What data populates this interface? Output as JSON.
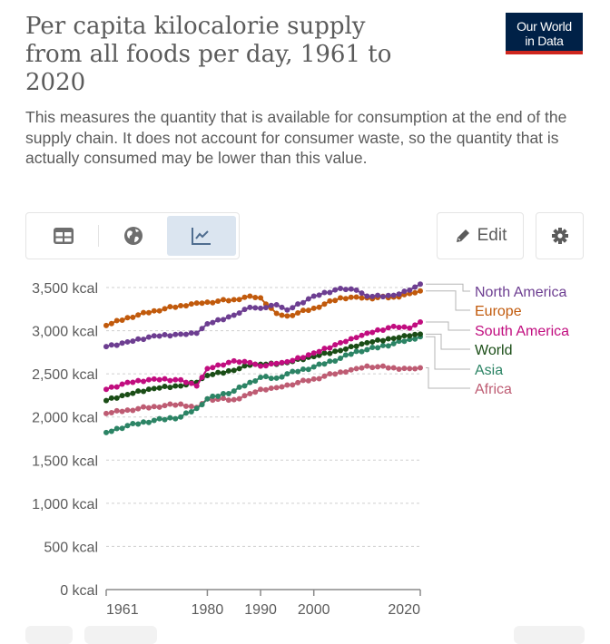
{
  "header": {
    "title": "Per capita kilocalorie supply from all foods per day, 1961 to 2020",
    "subtitle": "This measures the quantity that is available for consumption at the end of the supply chain. It does not account for consumer waste, so the quantity that is actually consumed may be lower than this value.",
    "logo_line1": "Our World",
    "logo_line2": "in Data"
  },
  "toolbar": {
    "tabs": [
      {
        "name": "table",
        "icon": "table-icon",
        "active": false
      },
      {
        "name": "map",
        "icon": "globe-icon",
        "active": false
      },
      {
        "name": "chart",
        "icon": "line-chart-icon",
        "active": true
      }
    ],
    "edit_label": "Edit",
    "settings_icon": "gear-icon"
  },
  "chart_data": {
    "type": "line",
    "title": "Per capita kilocalorie supply from all foods per day, 1961 to 2020",
    "xlabel": "",
    "ylabel": "",
    "xlim": [
      1961,
      2020
    ],
    "ylim": [
      0,
      3500
    ],
    "x_ticks": [
      1961,
      1980,
      1990,
      2000,
      2020
    ],
    "x_tick_labels": [
      "1961",
      "1980",
      "1990",
      "2000",
      "2020"
    ],
    "y_ticks": [
      0,
      500,
      1000,
      1500,
      2000,
      2500,
      3000,
      3500
    ],
    "y_tick_labels": [
      "0 kcal",
      "500 kcal",
      "1,000 kcal",
      "1,500 kcal",
      "2,000 kcal",
      "2,500 kcal",
      "3,000 kcal",
      "3,500 kcal"
    ],
    "grid": "horizontal dotted",
    "legend": "right, labels at line ends",
    "x": [
      1961,
      1965,
      1970,
      1975,
      1978,
      1980,
      1985,
      1988,
      1990,
      1993,
      1995,
      2000,
      2005,
      2008,
      2010,
      2015,
      2018,
      2020
    ],
    "series": [
      {
        "name": "North America",
        "color": "#6d3e91",
        "values": [
          2816,
          2870,
          2940,
          2960,
          2970,
          3080,
          3180,
          3270,
          3260,
          3300,
          3240,
          3400,
          3490,
          3470,
          3400,
          3410,
          3470,
          3540
        ]
      },
      {
        "name": "Europe",
        "color": "#c15a0c",
        "values": [
          3060,
          3150,
          3230,
          3290,
          3320,
          3330,
          3360,
          3400,
          3380,
          3200,
          3170,
          3260,
          3380,
          3390,
          3380,
          3390,
          3430,
          3460
        ]
      },
      {
        "name": "South America",
        "color": "#c10d7f",
        "values": [
          2320,
          2400,
          2440,
          2430,
          2360,
          2560,
          2650,
          2630,
          2590,
          2620,
          2640,
          2740,
          2860,
          2920,
          2970,
          3050,
          3030,
          3100
        ]
      },
      {
        "name": "World",
        "color": "#1a4d16",
        "values": [
          2190,
          2260,
          2330,
          2360,
          2400,
          2480,
          2540,
          2600,
          2610,
          2610,
          2630,
          2700,
          2770,
          2820,
          2860,
          2910,
          2940,
          2960
        ]
      },
      {
        "name": "Asia",
        "color": "#2c8465",
        "values": [
          1820,
          1900,
          1960,
          2000,
          2100,
          2210,
          2300,
          2400,
          2460,
          2450,
          2500,
          2580,
          2680,
          2760,
          2780,
          2850,
          2900,
          2930
        ]
      },
      {
        "name": "Africa",
        "color": "#be5c73",
        "values": [
          2040,
          2080,
          2120,
          2150,
          2110,
          2210,
          2200,
          2270,
          2320,
          2340,
          2370,
          2440,
          2520,
          2560,
          2590,
          2570,
          2560,
          2570
        ]
      }
    ]
  }
}
